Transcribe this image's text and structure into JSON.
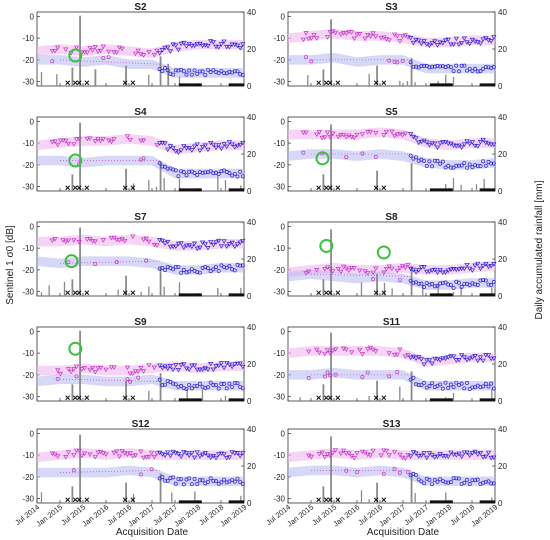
{
  "figure": {
    "ylabel_left": "Sentinel 1  σ0 [dB]",
    "ylabel_right": "Daily accumulated rainfall [mm]",
    "xlabel": "Acquisition Date"
  },
  "colors": {
    "vv_series": "#2b1fd6",
    "vh_series": "#c433c8",
    "vv_band": "#b7b7f2",
    "vh_band": "#f0b7ee",
    "rainfall": "#8a8a8a",
    "marker_x": "#111111",
    "highlight_circle": "#3fbf3f"
  },
  "chart_data": [
    {
      "type": "scatter",
      "title": "S2",
      "xlim": [
        "2014-07",
        "2019-01"
      ],
      "xticks": [
        "Jul 2014",
        "Jan 2015",
        "Jul 2015",
        "Jan 2016",
        "Jul 2016",
        "Jan 2017",
        "Jul 2017",
        "Jan 2018",
        "Jul 2018",
        "Jan 2019"
      ],
      "y_left": {
        "ylim": [
          -32,
          2
        ],
        "ticks": [
          0,
          -10,
          -20,
          -30
        ]
      },
      "y_right": {
        "ylim": [
          0,
          40
        ],
        "ticks": [
          40,
          20,
          0
        ]
      },
      "series": [
        {
          "key": "upper",
          "level": [
            -16,
            -15,
            -16,
            -15,
            -16,
            -17,
            -14,
            -13,
            -13,
            -13
          ]
        },
        {
          "key": "lower",
          "level": [
            -20,
            -20,
            -21,
            -20,
            -22,
            -22,
            -26,
            -26,
            -26,
            -26
          ]
        }
      ],
      "rain_events": [
        {
          "date": "2015-06",
          "mm": 38
        },
        {
          "date": "2015-04",
          "mm": 10
        },
        {
          "date": "2015-10",
          "mm": 9
        },
        {
          "date": "2016-06",
          "mm": 11
        },
        {
          "date": "2017-03",
          "mm": 16
        },
        {
          "date": "2017-05",
          "mm": 12
        }
      ],
      "highlights": [
        {
          "date": "2015-05",
          "value": -18
        }
      ]
    },
    {
      "type": "scatter",
      "title": "S3",
      "xlim": [
        "2014-07",
        "2019-01"
      ],
      "xticks": [
        "Jul 2014",
        "Jan 2015",
        "Jul 2015",
        "Jan 2016",
        "Jul 2016",
        "Jan 2017",
        "Jul 2017",
        "Jan 2018",
        "Jul 2018",
        "Jan 2019"
      ],
      "y_left": {
        "ylim": [
          -32,
          2
        ],
        "ticks": [
          0,
          -10,
          -20,
          -30
        ]
      },
      "y_right": {
        "ylim": [
          0,
          40
        ],
        "ticks": [
          40,
          20,
          0
        ]
      },
      "series": [
        {
          "key": "upper",
          "level": [
            -10,
            -9,
            -8,
            -9,
            -9,
            -10,
            -12,
            -12,
            -11,
            -11
          ]
        },
        {
          "key": "lower",
          "level": [
            -20,
            -20,
            -19,
            -21,
            -20,
            -20,
            -24,
            -24,
            -24,
            -24
          ]
        }
      ],
      "rain_events": [
        {
          "date": "2015-06",
          "mm": 36
        },
        {
          "date": "2015-04",
          "mm": 9
        },
        {
          "date": "2016-06",
          "mm": 11
        },
        {
          "date": "2017-03",
          "mm": 15
        }
      ],
      "highlights": []
    },
    {
      "type": "scatter",
      "title": "S4",
      "xlim": [
        "2014-07",
        "2019-01"
      ],
      "xticks": [
        "Jul 2014",
        "Jan 2015",
        "Jul 2015",
        "Jan 2016",
        "Jul 2016",
        "Jan 2017",
        "Jul 2017",
        "Jan 2018",
        "Jul 2018",
        "Jan 2019"
      ],
      "y_left": {
        "ylim": [
          -32,
          2
        ],
        "ticks": [
          0,
          -10,
          -20,
          -30
        ]
      },
      "y_right": {
        "ylim": [
          0,
          40
        ],
        "ticks": [
          40,
          20,
          0
        ]
      },
      "series": [
        {
          "key": "upper",
          "level": [
            -11,
            -10,
            -9,
            -9,
            -8,
            -9,
            -13,
            -12,
            -11,
            -11
          ]
        },
        {
          "key": "lower",
          "level": [
            -18,
            -18,
            -19,
            -18,
            -18,
            -18,
            -24,
            -24,
            -24,
            -24
          ]
        }
      ],
      "rain_events": [
        {
          "date": "2015-06",
          "mm": 37
        },
        {
          "date": "2015-04",
          "mm": 9
        },
        {
          "date": "2016-06",
          "mm": 12
        },
        {
          "date": "2017-03",
          "mm": 16
        }
      ],
      "highlights": [
        {
          "date": "2015-05",
          "value": -18
        }
      ]
    },
    {
      "type": "scatter",
      "title": "S5",
      "xlim": [
        "2014-07",
        "2019-01"
      ],
      "xticks": [
        "Jul 2014",
        "Jan 2015",
        "Jul 2015",
        "Jan 2016",
        "Jul 2016",
        "Jan 2017",
        "Jul 2017",
        "Jan 2018",
        "Jul 2018",
        "Jan 2019"
      ],
      "y_left": {
        "ylim": [
          -32,
          2
        ],
        "ticks": [
          0,
          -10,
          -20,
          -30
        ]
      },
      "y_right": {
        "ylim": [
          0,
          40
        ],
        "ticks": [
          40,
          20,
          0
        ]
      },
      "series": [
        {
          "key": "upper",
          "level": [
            -6,
            -6,
            -6,
            -6,
            -5,
            -6,
            -10,
            -11,
            -10,
            -10
          ]
        },
        {
          "key": "lower",
          "level": [
            -16,
            -15,
            -15,
            -16,
            -15,
            -16,
            -19,
            -20,
            -20,
            -19
          ]
        }
      ],
      "rain_events": [
        {
          "date": "2015-06",
          "mm": 36
        },
        {
          "date": "2015-04",
          "mm": 9
        },
        {
          "date": "2016-06",
          "mm": 11
        },
        {
          "date": "2017-03",
          "mm": 15
        }
      ],
      "highlights": [
        {
          "date": "2015-04",
          "value": -17
        }
      ]
    },
    {
      "type": "scatter",
      "title": "S7",
      "xlim": [
        "2014-07",
        "2019-01"
      ],
      "xticks": [
        "Jul 2014",
        "Jan 2015",
        "Jul 2015",
        "Jan 2016",
        "Jul 2016",
        "Jan 2017",
        "Jul 2017",
        "Jan 2018",
        "Jul 2018",
        "Jan 2019"
      ],
      "y_left": {
        "ylim": [
          -32,
          2
        ],
        "ticks": [
          0,
          -10,
          -20,
          -30
        ]
      },
      "y_right": {
        "ylim": [
          0,
          40
        ],
        "ticks": [
          40,
          20,
          0
        ]
      },
      "series": [
        {
          "key": "upper",
          "level": [
            -7,
            -7,
            -6,
            -7,
            -6,
            -7,
            -9,
            -9,
            -8,
            -8
          ]
        },
        {
          "key": "lower",
          "level": [
            -16,
            -17,
            -16,
            -16,
            -16,
            -17,
            -20,
            -20,
            -19,
            -19
          ]
        }
      ],
      "rain_events": [
        {
          "date": "2015-06",
          "mm": 37
        },
        {
          "date": "2015-04",
          "mm": 9
        },
        {
          "date": "2016-06",
          "mm": 11
        },
        {
          "date": "2017-03",
          "mm": 16
        }
      ],
      "highlights": [
        {
          "date": "2015-04",
          "value": -16
        }
      ]
    },
    {
      "type": "scatter",
      "title": "S8",
      "xlim": [
        "2014-07",
        "2019-01"
      ],
      "xticks": [
        "Jul 2014",
        "Jan 2015",
        "Jul 2015",
        "Jan 2016",
        "Jul 2016",
        "Jan 2017",
        "Jul 2017",
        "Jan 2018",
        "Jul 2018",
        "Jan 2019"
      ],
      "y_left": {
        "ylim": [
          -32,
          2
        ],
        "ticks": [
          0,
          -10,
          -20,
          -30
        ]
      },
      "y_right": {
        "ylim": [
          0,
          40
        ],
        "ticks": [
          40,
          20,
          0
        ]
      },
      "series": [
        {
          "key": "upper",
          "level": [
            -21,
            -20,
            -19,
            -20,
            -20,
            -19,
            -20,
            -20,
            -19,
            -18
          ]
        },
        {
          "key": "lower",
          "level": [
            -23,
            -22,
            -23,
            -24,
            -23,
            -24,
            -27,
            -27,
            -26,
            -26
          ]
        }
      ],
      "rain_events": [
        {
          "date": "2015-06",
          "mm": 36
        },
        {
          "date": "2015-04",
          "mm": 9
        },
        {
          "date": "2016-06",
          "mm": 12
        },
        {
          "date": "2017-03",
          "mm": 16
        }
      ],
      "highlights": [
        {
          "date": "2015-05",
          "value": -9
        },
        {
          "date": "2016-08",
          "value": -12
        }
      ]
    },
    {
      "type": "scatter",
      "title": "S9",
      "xlim": [
        "2014-07",
        "2019-01"
      ],
      "xticks": [
        "Jul 2014",
        "Jan 2015",
        "Jul 2015",
        "Jan 2016",
        "Jul 2016",
        "Jan 2017",
        "Jul 2017",
        "Jan 2018",
        "Jul 2018",
        "Jan 2019"
      ],
      "y_left": {
        "ylim": [
          -32,
          2
        ],
        "ticks": [
          0,
          -10,
          -20,
          -30
        ]
      },
      "y_right": {
        "ylim": [
          0,
          40
        ],
        "ticks": [
          40,
          20,
          0
        ]
      },
      "series": [
        {
          "key": "upper",
          "level": [
            -18,
            -18,
            -17,
            -18,
            -18,
            -17,
            -16,
            -17,
            -16,
            -16
          ]
        },
        {
          "key": "lower",
          "level": [
            -23,
            -22,
            -22,
            -23,
            -23,
            -22,
            -25,
            -25,
            -25,
            -25
          ]
        }
      ],
      "rain_events": [
        {
          "date": "2015-06",
          "mm": 38
        },
        {
          "date": "2015-04",
          "mm": 9
        },
        {
          "date": "2016-06",
          "mm": 11
        },
        {
          "date": "2017-03",
          "mm": 15
        }
      ],
      "highlights": [
        {
          "date": "2015-05",
          "value": -8
        }
      ]
    },
    {
      "type": "scatter",
      "title": "S11",
      "xlim": [
        "2014-07",
        "2019-01"
      ],
      "xticks": [
        "Jul 2014",
        "Jan 2015",
        "Jul 2015",
        "Jan 2016",
        "Jul 2016",
        "Jan 2017",
        "Jul 2017",
        "Jan 2018",
        "Jul 2018",
        "Jan 2019"
      ],
      "y_left": {
        "ylim": [
          -32,
          2
        ],
        "ticks": [
          0,
          -10,
          -20,
          -30
        ]
      },
      "y_right": {
        "ylim": [
          0,
          40
        ],
        "ticks": [
          40,
          20,
          0
        ]
      },
      "series": [
        {
          "key": "upper",
          "level": [
            -10,
            -9,
            -9,
            -9,
            -9,
            -10,
            -14,
            -13,
            -12,
            -12
          ]
        },
        {
          "key": "lower",
          "level": [
            -20,
            -20,
            -19,
            -20,
            -20,
            -20,
            -25,
            -25,
            -25,
            -25
          ]
        }
      ],
      "rain_events": [
        {
          "date": "2015-06",
          "mm": 37
        },
        {
          "date": "2015-04",
          "mm": 9
        },
        {
          "date": "2016-06",
          "mm": 11
        },
        {
          "date": "2017-03",
          "mm": 16
        }
      ],
      "highlights": []
    },
    {
      "type": "scatter",
      "title": "S12",
      "xlim": [
        "2014-07",
        "2019-01"
      ],
      "xticks": [
        "Jul 2014",
        "Jan 2015",
        "Jul 2015",
        "Jan 2016",
        "Jul 2016",
        "Jan 2017",
        "Jul 2017",
        "Jan 2018",
        "Jul 2018",
        "Jan 2019"
      ],
      "y_left": {
        "ylim": [
          -32,
          2
        ],
        "ticks": [
          0,
          -10,
          -20,
          -30
        ]
      },
      "y_right": {
        "ylim": [
          0,
          40
        ],
        "ticks": [
          40,
          20,
          0
        ]
      },
      "series": [
        {
          "key": "upper",
          "level": [
            -11,
            -10,
            -9,
            -10,
            -9,
            -10,
            -10,
            -10,
            -10,
            -10
          ]
        },
        {
          "key": "lower",
          "level": [
            -18,
            -18,
            -18,
            -18,
            -17,
            -18,
            -22,
            -22,
            -22,
            -22
          ]
        }
      ],
      "rain_events": [
        {
          "date": "2015-06",
          "mm": 37
        },
        {
          "date": "2015-04",
          "mm": 9
        },
        {
          "date": "2016-06",
          "mm": 11
        },
        {
          "date": "2017-03",
          "mm": 16
        }
      ],
      "highlights": []
    },
    {
      "type": "scatter",
      "title": "S13",
      "xlim": [
        "2014-07",
        "2019-01"
      ],
      "xticks": [
        "Jul 2014",
        "Jan 2015",
        "Jul 2015",
        "Jan 2016",
        "Jul 2016",
        "Jan 2017",
        "Jul 2017",
        "Jan 2018",
        "Jul 2018",
        "Jan 2019"
      ],
      "y_left": {
        "ylim": [
          -32,
          2
        ],
        "ticks": [
          0,
          -10,
          -20,
          -30
        ]
      },
      "y_right": {
        "ylim": [
          0,
          40
        ],
        "ticks": [
          40,
          20,
          0
        ]
      },
      "series": [
        {
          "key": "upper",
          "level": [
            -11,
            -10,
            -9,
            -10,
            -9,
            -10,
            -10,
            -10,
            -10,
            -10
          ]
        },
        {
          "key": "lower",
          "level": [
            -18,
            -17,
            -17,
            -18,
            -17,
            -18,
            -22,
            -22,
            -22,
            -22
          ]
        }
      ],
      "rain_events": [
        {
          "date": "2015-06",
          "mm": 36
        },
        {
          "date": "2015-04",
          "mm": 9
        },
        {
          "date": "2016-06",
          "mm": 11
        },
        {
          "date": "2017-03",
          "mm": 16
        }
      ],
      "highlights": []
    }
  ]
}
